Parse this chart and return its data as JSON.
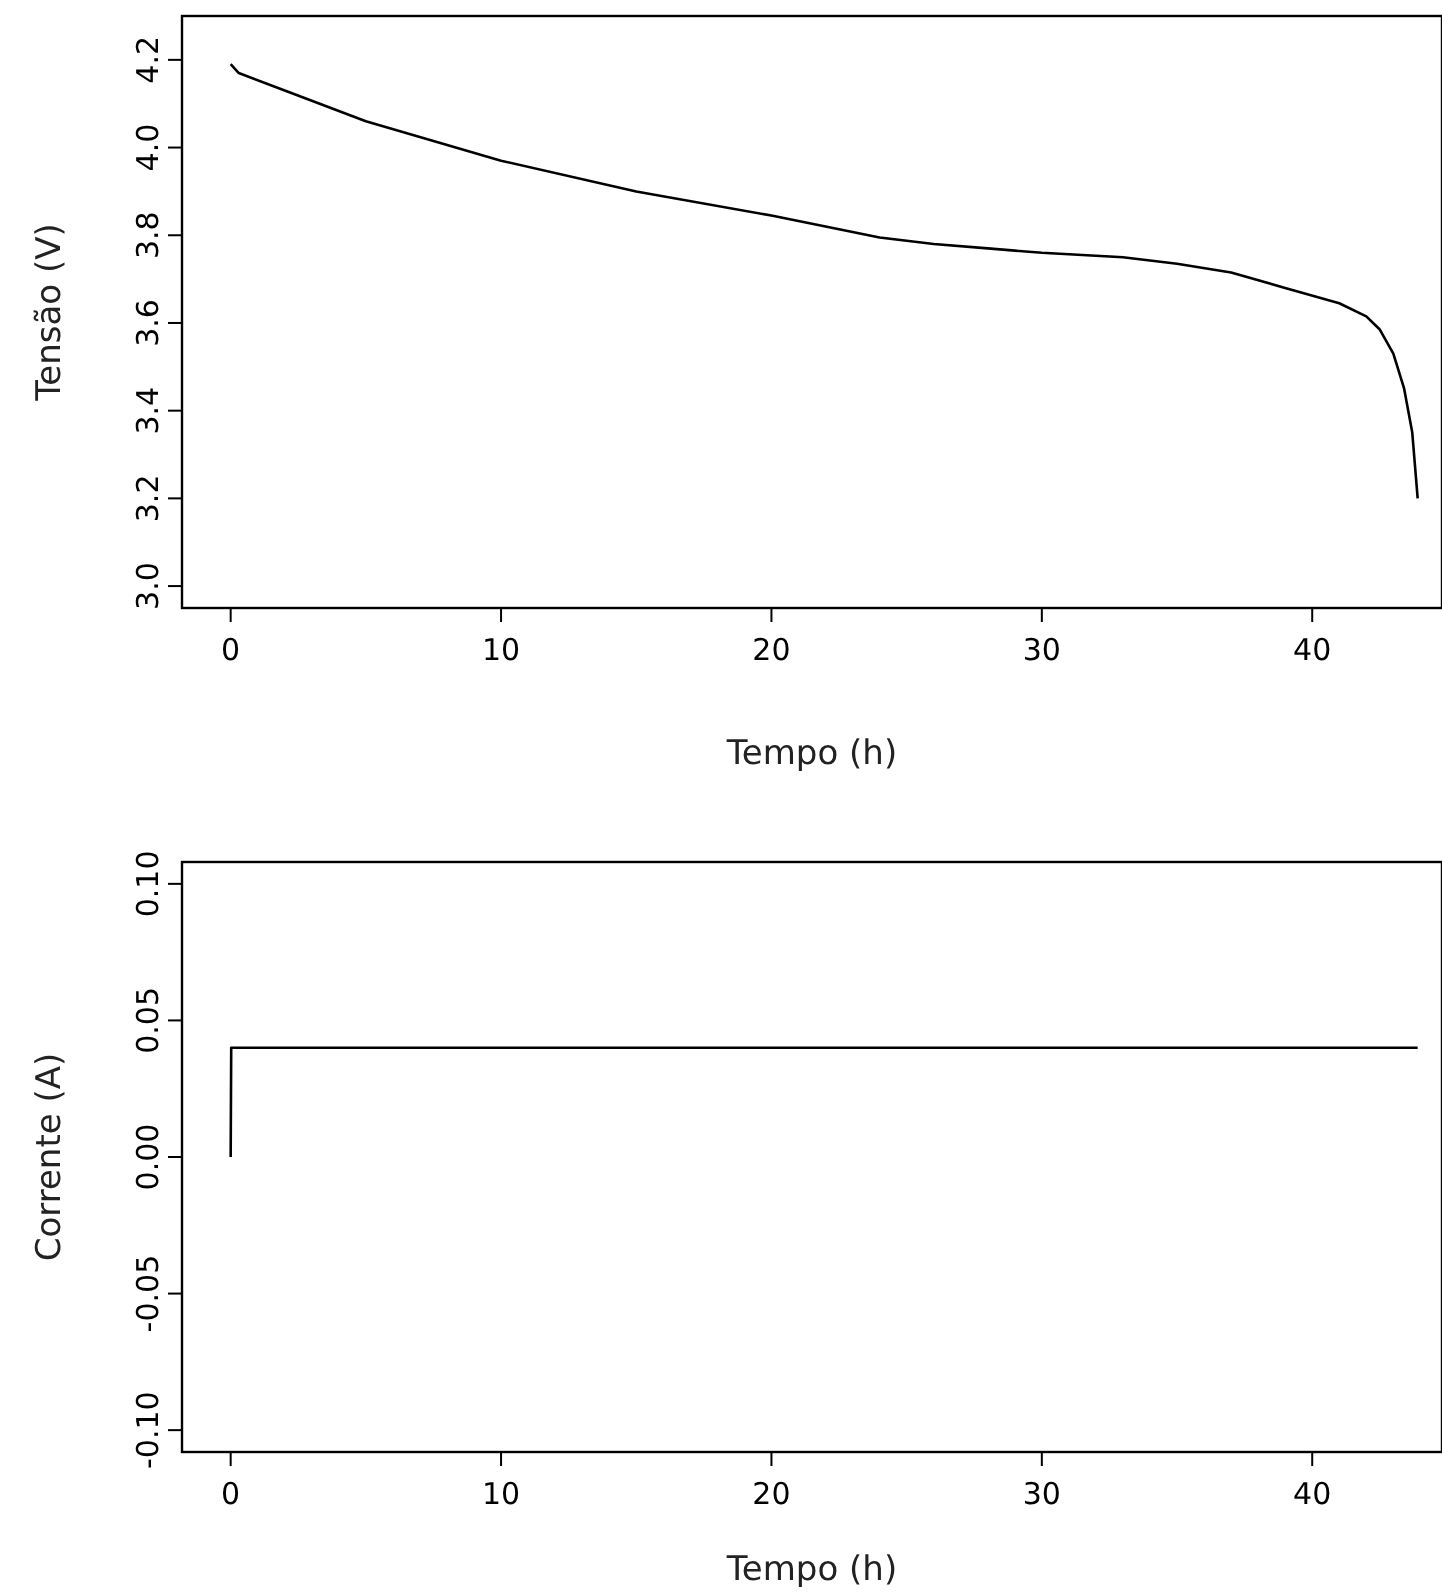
{
  "chart_data": [
    {
      "type": "line",
      "xlabel": "Tempo (h)",
      "ylabel": "Tensão (V)",
      "color": "#000000",
      "x": [
        0,
        0.3,
        2,
        5,
        10,
        15,
        20,
        22,
        24,
        26,
        28,
        30,
        33,
        35,
        37,
        39,
        41,
        42,
        42.5,
        43,
        43.4,
        43.7,
        43.9
      ],
      "values": [
        4.19,
        4.17,
        4.13,
        4.06,
        3.97,
        3.9,
        3.845,
        3.82,
        3.795,
        3.78,
        3.77,
        3.76,
        3.75,
        3.735,
        3.715,
        3.68,
        3.645,
        3.615,
        3.585,
        3.53,
        3.45,
        3.35,
        3.2
      ],
      "xlim": [
        -1.8,
        44.8
      ],
      "xticks": [
        0,
        10,
        20,
        30,
        40
      ],
      "ylim": [
        2.95,
        4.3
      ],
      "yticks": [
        {
          "value": 3,
          "label": "3.0"
        },
        3.2,
        3.4,
        3.6,
        3.8,
        {
          "value": 4,
          "label": "4.0"
        },
        4.2
      ]
    },
    {
      "type": "line",
      "xlabel": "Tempo (h)",
      "ylabel": "Corrente (A)",
      "color": "#000000",
      "x": [
        0,
        0.02,
        5,
        10,
        15,
        20,
        25,
        30,
        35,
        40,
        43.9
      ],
      "values": [
        0,
        0.04,
        0.04,
        0.04,
        0.04,
        0.04,
        0.04,
        0.04,
        0.04,
        0.04,
        0.04
      ],
      "xlim": [
        -1.8,
        44.8
      ],
      "xticks": [
        0,
        10,
        20,
        30,
        40
      ],
      "ylim": [
        -0.108,
        0.108
      ],
      "yticks": [
        {
          "value": -0.1,
          "label": "-0.10"
        },
        -0.05,
        {
          "value": 0,
          "label": "0.00"
        },
        0.05,
        {
          "value": 0.1,
          "label": "0.10"
        }
      ]
    }
  ]
}
